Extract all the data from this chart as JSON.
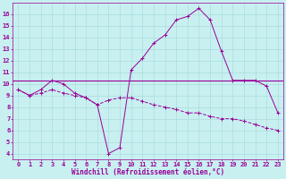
{
  "title": "",
  "xlabel": "Windchill (Refroidissement éolien,°C)",
  "background_color": "#c8f0f0",
  "grid_color": "#aadddd",
  "line_color": "#990099",
  "curve1_x": [
    0,
    1,
    2,
    3,
    4,
    5,
    6,
    7,
    8,
    9,
    10,
    11,
    12,
    13,
    14,
    15,
    16,
    17,
    18,
    19,
    20,
    21,
    22,
    23
  ],
  "curve1_y": [
    9.5,
    9.0,
    9.5,
    10.3,
    10.0,
    9.2,
    8.8,
    8.2,
    4.0,
    4.5,
    11.2,
    12.2,
    13.5,
    14.2,
    15.5,
    15.8,
    16.5,
    15.5,
    12.8,
    10.3,
    10.3,
    10.3,
    9.8,
    7.5
  ],
  "curve2_x": [
    0,
    1,
    2,
    3,
    4,
    5,
    6,
    7,
    8,
    9,
    10,
    11,
    12,
    13,
    14,
    15,
    16,
    17,
    18,
    19,
    20,
    21,
    22,
    23
  ],
  "curve2_y": [
    9.5,
    9.0,
    9.2,
    9.5,
    9.2,
    9.0,
    8.8,
    8.2,
    8.6,
    8.8,
    8.8,
    8.5,
    8.2,
    8.0,
    7.8,
    7.5,
    7.5,
    7.2,
    7.0,
    7.0,
    6.8,
    6.5,
    6.2,
    6.0
  ],
  "hline_y": 10.3,
  "xlim": [
    -0.5,
    23.5
  ],
  "ylim": [
    3.5,
    17.0
  ],
  "yticks": [
    4,
    5,
    6,
    7,
    8,
    9,
    10,
    11,
    12,
    13,
    14,
    15,
    16
  ],
  "xticks": [
    0,
    1,
    2,
    3,
    4,
    5,
    6,
    7,
    8,
    9,
    10,
    11,
    12,
    13,
    14,
    15,
    16,
    17,
    18,
    19,
    20,
    21,
    22,
    23
  ],
  "fontsize_label": 5.5,
  "fontsize_tick": 5.0,
  "marker_size": 2.5,
  "linewidth": 0.7
}
